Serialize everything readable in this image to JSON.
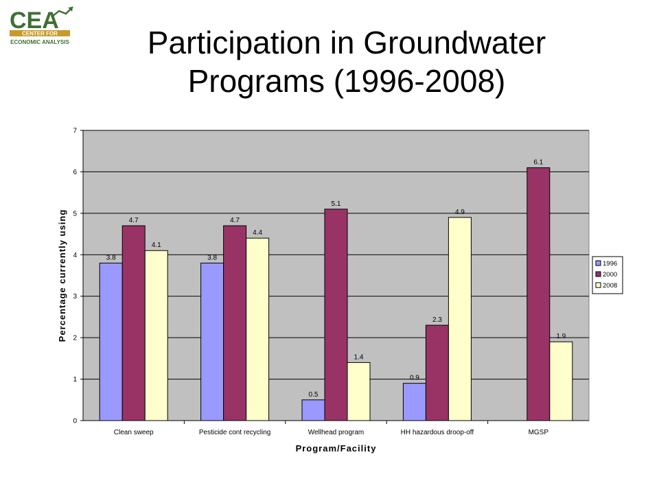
{
  "logo": {
    "letters": "CEA",
    "line1": "CENTER FOR",
    "line2": "ECONOMIC ANALYSIS",
    "colors": {
      "green": "#3f6f34",
      "gold": "#c79a2a"
    }
  },
  "title": {
    "line1": "Participation in Groundwater",
    "line2": "Programs (1996-2008)"
  },
  "chart_data": {
    "type": "bar",
    "title": "",
    "xlabel": "Program/Facility",
    "ylabel": "Percentage currently using",
    "ylim": [
      0,
      7
    ],
    "yticks": [
      "0",
      "1",
      "2",
      "3",
      "4",
      "5",
      "6",
      "7"
    ],
    "grid": true,
    "legend_position": "right",
    "categories": [
      "Clean sweep",
      "Pesticide cont recycling",
      "Wellhead program",
      "HH hazardous droop-off",
      "MGSP"
    ],
    "series": [
      {
        "name": "1996",
        "color": "#9999ff",
        "values": [
          3.8,
          3.8,
          0.5,
          0.9,
          null
        ],
        "labels": [
          "3.8",
          "3.8",
          "0.5",
          "0.9",
          ""
        ]
      },
      {
        "name": "2000",
        "color": "#993366",
        "values": [
          4.7,
          4.7,
          5.1,
          2.3,
          6.1
        ],
        "labels": [
          "4.7",
          "4.7",
          "5.1",
          "2.3",
          "6.1"
        ]
      },
      {
        "name": "2008",
        "color": "#ffffcc",
        "values": [
          4.1,
          4.4,
          1.4,
          4.9,
          1.9
        ],
        "labels": [
          "4.1",
          "4.4",
          "1.4",
          "4.9",
          "1.9"
        ]
      }
    ],
    "plot_background": "#c0c0c0"
  }
}
